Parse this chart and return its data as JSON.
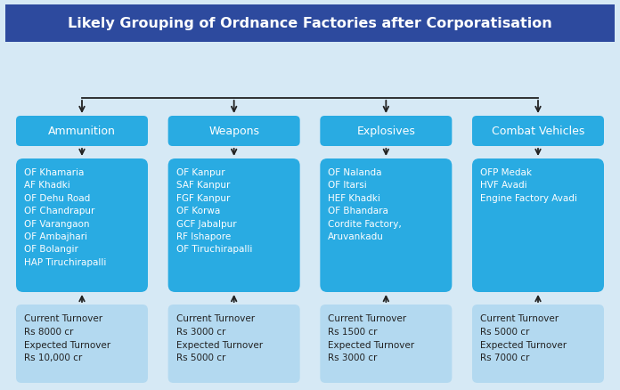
{
  "title": "Likely Grouping of Ordnance Factories after Corporatisation",
  "title_bg": "#2d4a9e",
  "title_color": "#ffffff",
  "bg_color": "#d6e9f5",
  "header_box_color": "#29abe2",
  "detail_box_color": "#29abe2",
  "bottom_box_color": "#b3d9f0",
  "arrow_color": "#222222",
  "figw": 6.96,
  "figh": 4.39,
  "dpi": 100,
  "columns": [
    {
      "header": "Ammunition",
      "factories": "OF Khamaria\nAF Khadki\nOF Dehu Road\nOF Chandrapur\nOF Varangaon\nOF Ambajhari\nOF Bolangir\nHAP Tiruchirapalli",
      "turnover": "Current Turnover\nRs 8000 cr\nExpected Turnover\nRs 10,000 cr"
    },
    {
      "header": "Weapons",
      "factories": "OF Kanpur\nSAF Kanpur\nFGF Kanpur\nOF Korwa\nGCF Jabalpur\nRF Ishapore\nOF Tiruchirapalli",
      "turnover": "Current Turnover\nRs 3000 cr\nExpected Turnover\nRs 5000 cr"
    },
    {
      "header": "Explosives",
      "factories": "OF Nalanda\nOF Itarsi\nHEF Khadki\nOF Bhandara\nCordite Factory,\nAruvankadu",
      "turnover": "Current Turnover\nRs 1500 cr\nExpected Turnover\nRs 3000 cr"
    },
    {
      "header": "Combat Vehicles",
      "factories": "OFP Medak\nHVF Avadi\nEngine Factory Avadi",
      "turnover": "Current Turnover\nRs 5000 cr\nExpected Turnover\nRs 7000 cr"
    }
  ]
}
